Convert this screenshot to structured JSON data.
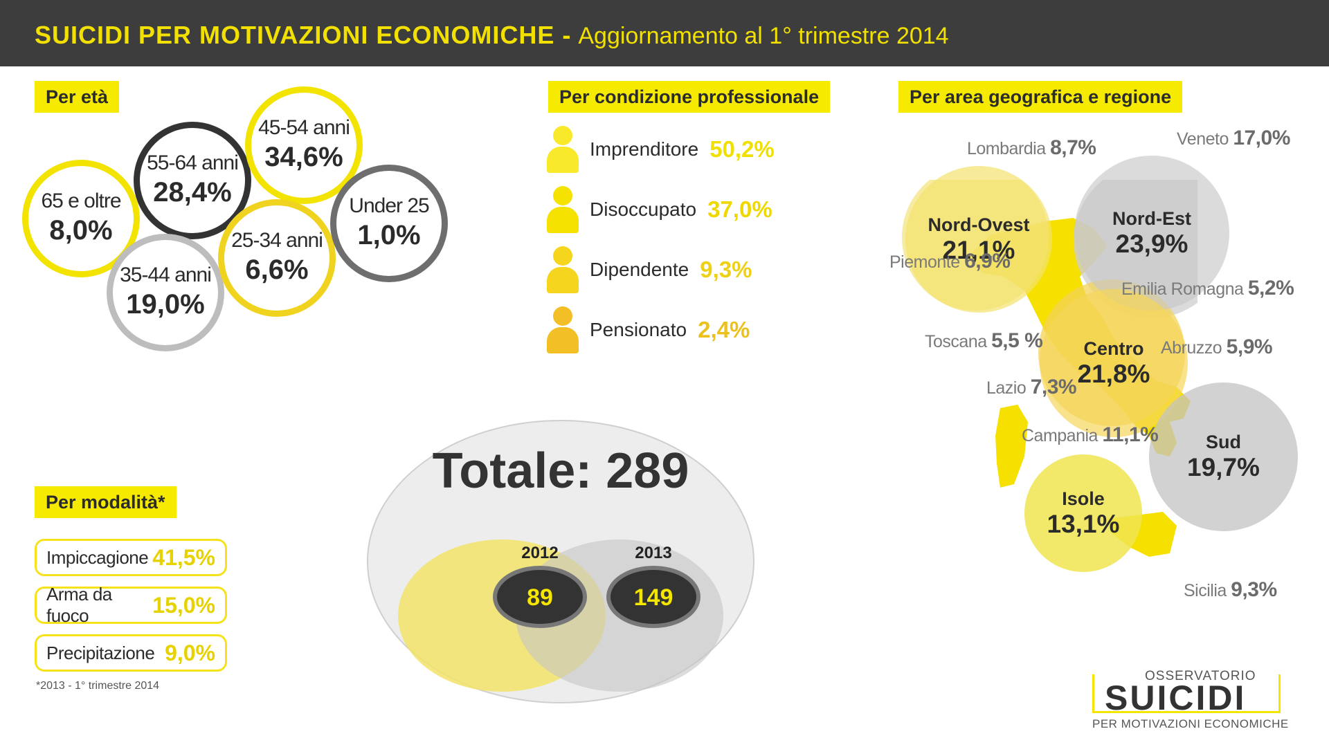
{
  "header": {
    "title": "SUICIDI PER MOTIVAZIONI ECONOMICHE -",
    "subtitle": "Aggiornamento al 1° trimestre 2014"
  },
  "sections": {
    "eta": "Per età",
    "professione": "Per condizione professionale",
    "area": "Per area geografica e regione",
    "modalita": "Per modalità*"
  },
  "colors": {
    "yellow": "#f5ea00",
    "dark": "#3d3d3d",
    "grey": "#bdbdbd"
  },
  "chart_data": [
    {
      "type": "bubble",
      "title": "Per età",
      "categories": [
        "65 e oltre",
        "55-64 anni",
        "35-44 anni",
        "45-54 anni",
        "25-34 anni",
        "Under 25"
      ],
      "values": [
        8.0,
        28.4,
        19.0,
        34.6,
        6.6,
        1.0
      ],
      "labels": [
        "8,0%",
        "28,4%",
        "19,0%",
        "34,6%",
        "6,6%",
        "1,0%"
      ],
      "unit": "%"
    },
    {
      "type": "bar",
      "title": "Per condizione professionale",
      "categories": [
        "Imprenditore",
        "Disoccupato",
        "Dipendente",
        "Pensionato"
      ],
      "values": [
        50.2,
        37.0,
        9.3,
        2.4
      ],
      "labels": [
        "50,2%",
        "37,0%",
        "9,3%",
        "2,4%"
      ],
      "unit": "%"
    },
    {
      "type": "table",
      "title": "Per modalità*",
      "categories": [
        "Impiccagione",
        "Arma da fuoco",
        "Precipitazione"
      ],
      "values": [
        41.5,
        15.0,
        9.0
      ],
      "labels": [
        "41,5%",
        "15,0%",
        "9,0%"
      ],
      "footnote": "*2013 - 1° trimestre 2014"
    },
    {
      "type": "venn",
      "title": "Totale: 289",
      "categories": [
        "2012",
        "2013"
      ],
      "values": [
        89,
        149
      ]
    },
    {
      "type": "bubble",
      "title": "Per area geografica e regione",
      "areas": [
        {
          "name": "Nord-Ovest",
          "label": "21,1%",
          "value": 21.1
        },
        {
          "name": "Nord-Est",
          "label": "23,9%",
          "value": 23.9
        },
        {
          "name": "Centro",
          "label": "21,8%",
          "value": 21.8
        },
        {
          "name": "Sud",
          "label": "19,7%",
          "value": 19.7
        },
        {
          "name": "Isole",
          "label": "13,1%",
          "value": 13.1
        }
      ],
      "regions": [
        {
          "name": "Lombardia",
          "label": "8,7%",
          "value": 8.7
        },
        {
          "name": "Veneto",
          "label": "17,0%",
          "value": 17.0
        },
        {
          "name": "Piemonte",
          "label": "6,9%",
          "value": 6.9
        },
        {
          "name": "Emilia Romagna",
          "label": "5,2%",
          "value": 5.2
        },
        {
          "name": "Toscana",
          "label": "5,5 %",
          "value": 5.5
        },
        {
          "name": "Abruzzo",
          "label": "5,9%",
          "value": 5.9
        },
        {
          "name": "Lazio",
          "label": "7,3%",
          "value": 7.3
        },
        {
          "name": "Campania",
          "label": "11,1%",
          "value": 11.1
        },
        {
          "name": "Sicilia",
          "label": "9,3%",
          "value": 9.3
        }
      ]
    }
  ],
  "total": {
    "label": "Totale: 289",
    "y2012": "2012",
    "v2012": "89",
    "y2013": "2013",
    "v2013": "149"
  },
  "logo": {
    "top": "OSSERVATORIO",
    "main": "SUICIDI",
    "bottom": "PER MOTIVAZIONI ECONOMICHE"
  }
}
